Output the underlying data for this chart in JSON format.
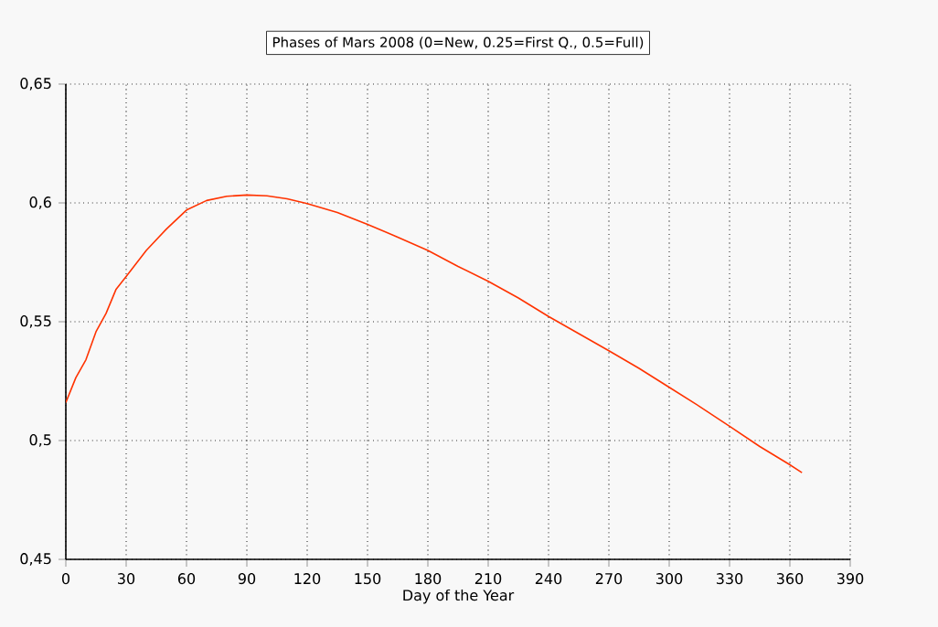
{
  "chart_data": {
    "type": "line",
    "title": "Phases of Mars 2008 (0=New, 0.25=First Q., 0.5=Full)",
    "xlabel": "Day of the Year",
    "x": [
      0,
      5,
      10,
      15,
      20,
      25,
      30,
      40,
      50,
      60,
      70,
      80,
      90,
      100,
      110,
      120,
      135,
      150,
      165,
      180,
      195,
      210,
      225,
      240,
      255,
      270,
      285,
      300,
      315,
      330,
      345,
      360,
      366
    ],
    "values": [
      0.516,
      0.5265,
      0.534,
      0.5458,
      0.5535,
      0.5637,
      0.569,
      0.58,
      0.589,
      0.597,
      0.601,
      0.6028,
      0.6033,
      0.603,
      0.6017,
      0.5997,
      0.596,
      0.591,
      0.5856,
      0.58,
      0.5733,
      0.567,
      0.56,
      0.5522,
      0.545,
      0.5378,
      0.5304,
      0.5224,
      0.5144,
      0.506,
      0.4975,
      0.4898,
      0.4865
    ],
    "color": "#ff3300",
    "xlim": [
      0,
      390
    ],
    "xticks": [
      0,
      30,
      60,
      90,
      120,
      150,
      180,
      210,
      240,
      270,
      300,
      330,
      360,
      390
    ],
    "ylim": [
      0.45,
      0.65
    ],
    "yticks": [
      {
        "value": 0.45,
        "label": "0,45"
      },
      {
        "value": 0.5,
        "label": "0,5"
      },
      {
        "value": 0.55,
        "label": "0,55"
      },
      {
        "value": 0.6,
        "label": "0,6"
      },
      {
        "value": 0.65,
        "label": "0,65"
      }
    ],
    "grid": true,
    "marker": "none",
    "line_style": "solid"
  }
}
